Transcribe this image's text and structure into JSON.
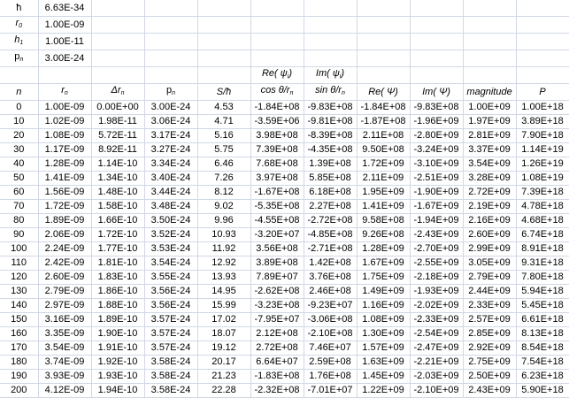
{
  "constants": [
    {
      "symbol": "ħ",
      "sub": "",
      "italic": false,
      "value": "6.63E-34"
    },
    {
      "symbol": "r",
      "sub": "0",
      "italic": true,
      "value": "1.00E-09"
    },
    {
      "symbol": "h",
      "sub": "1",
      "italic": true,
      "value": "1.00E-11"
    },
    {
      "symbol": "p",
      "sub": "n",
      "italic": false,
      "value": "3.00E-24"
    }
  ],
  "super_headers": {
    "col6": {
      "main": "Re( ψ",
      "sub": "i",
      "end": ")"
    },
    "col7": {
      "main": "Im( ψ",
      "sub": "i",
      "end": ")"
    }
  },
  "headers": [
    {
      "main": "n",
      "sub": "",
      "italic": true
    },
    {
      "main": "r",
      "sub": "n",
      "italic": true
    },
    {
      "main": "Δr",
      "sub": "n",
      "italic": true
    },
    {
      "main": "p",
      "sub": "n",
      "italic": false
    },
    {
      "main": "S/ħ",
      "sub": "",
      "italic": true
    },
    {
      "main": "cos θ/r",
      "sub": "n",
      "italic": true
    },
    {
      "main": "sin θ/r",
      "sub": "n",
      "italic": true
    },
    {
      "main": "Re( Ψ)",
      "sub": "",
      "italic": true
    },
    {
      "main": "Im( Ψ)",
      "sub": "",
      "italic": true
    },
    {
      "main": "magnitude",
      "sub": "",
      "italic": true
    },
    {
      "main": "P",
      "sub": "",
      "italic": true
    }
  ],
  "rows": [
    [
      "0",
      "1.00E-09",
      "0.00E+00",
      "3.00E-24",
      "4.53",
      "-1.84E+08",
      "-9.83E+08",
      "-1.84E+08",
      "-9.83E+08",
      "1.00E+09",
      "1.00E+18"
    ],
    [
      "10",
      "1.02E-09",
      "1.98E-11",
      "3.06E-24",
      "4.71",
      "-3.59E+06",
      "-9.81E+08",
      "-1.87E+08",
      "-1.96E+09",
      "1.97E+09",
      "3.89E+18"
    ],
    [
      "20",
      "1.08E-09",
      "5.72E-11",
      "3.17E-24",
      "5.16",
      "3.98E+08",
      "-8.39E+08",
      "2.11E+08",
      "-2.80E+09",
      "2.81E+09",
      "7.90E+18"
    ],
    [
      "30",
      "1.17E-09",
      "8.92E-11",
      "3.27E-24",
      "5.75",
      "7.39E+08",
      "-4.35E+08",
      "9.50E+08",
      "-3.24E+09",
      "3.37E+09",
      "1.14E+19"
    ],
    [
      "40",
      "1.28E-09",
      "1.14E-10",
      "3.34E-24",
      "6.46",
      "7.68E+08",
      "1.39E+08",
      "1.72E+09",
      "-3.10E+09",
      "3.54E+09",
      "1.26E+19"
    ],
    [
      "50",
      "1.41E-09",
      "1.34E-10",
      "3.40E-24",
      "7.26",
      "3.97E+08",
      "5.85E+08",
      "2.11E+09",
      "-2.51E+09",
      "3.28E+09",
      "1.08E+19"
    ],
    [
      "60",
      "1.56E-09",
      "1.48E-10",
      "3.44E-24",
      "8.12",
      "-1.67E+08",
      "6.18E+08",
      "1.95E+09",
      "-1.90E+09",
      "2.72E+09",
      "7.39E+18"
    ],
    [
      "70",
      "1.72E-09",
      "1.58E-10",
      "3.48E-24",
      "9.02",
      "-5.35E+08",
      "2.27E+08",
      "1.41E+09",
      "-1.67E+09",
      "2.19E+09",
      "4.78E+18"
    ],
    [
      "80",
      "1.89E-09",
      "1.66E-10",
      "3.50E-24",
      "9.96",
      "-4.55E+08",
      "-2.72E+08",
      "9.58E+08",
      "-1.94E+09",
      "2.16E+09",
      "4.68E+18"
    ],
    [
      "90",
      "2.06E-09",
      "1.72E-10",
      "3.52E-24",
      "10.93",
      "-3.20E+07",
      "-4.85E+08",
      "9.26E+08",
      "-2.43E+09",
      "2.60E+09",
      "6.74E+18"
    ],
    [
      "100",
      "2.24E-09",
      "1.77E-10",
      "3.53E-24",
      "11.92",
      "3.56E+08",
      "-2.71E+08",
      "1.28E+09",
      "-2.70E+09",
      "2.99E+09",
      "8.91E+18"
    ],
    [
      "110",
      "2.42E-09",
      "1.81E-10",
      "3.54E-24",
      "12.92",
      "3.89E+08",
      "1.42E+08",
      "1.67E+09",
      "-2.55E+09",
      "3.05E+09",
      "9.31E+18"
    ],
    [
      "120",
      "2.60E-09",
      "1.83E-10",
      "3.55E-24",
      "13.93",
      "7.89E+07",
      "3.76E+08",
      "1.75E+09",
      "-2.18E+09",
      "2.79E+09",
      "7.80E+18"
    ],
    [
      "130",
      "2.79E-09",
      "1.86E-10",
      "3.56E-24",
      "14.95",
      "-2.62E+08",
      "2.46E+08",
      "1.49E+09",
      "-1.93E+09",
      "2.44E+09",
      "5.94E+18"
    ],
    [
      "140",
      "2.97E-09",
      "1.88E-10",
      "3.56E-24",
      "15.99",
      "-3.23E+08",
      "-9.23E+07",
      "1.16E+09",
      "-2.02E+09",
      "2.33E+09",
      "5.45E+18"
    ],
    [
      "150",
      "3.16E-09",
      "1.89E-10",
      "3.57E-24",
      "17.02",
      "-7.95E+07",
      "-3.06E+08",
      "1.08E+09",
      "-2.33E+09",
      "2.57E+09",
      "6.61E+18"
    ],
    [
      "160",
      "3.35E-09",
      "1.90E-10",
      "3.57E-24",
      "18.07",
      "2.12E+08",
      "-2.10E+08",
      "1.30E+09",
      "-2.54E+09",
      "2.85E+09",
      "8.13E+18"
    ],
    [
      "170",
      "3.54E-09",
      "1.91E-10",
      "3.57E-24",
      "19.12",
      "2.72E+08",
      "7.46E+07",
      "1.57E+09",
      "-2.47E+09",
      "2.92E+09",
      "8.54E+18"
    ],
    [
      "180",
      "3.74E-09",
      "1.92E-10",
      "3.58E-24",
      "20.17",
      "6.64E+07",
      "2.59E+08",
      "1.63E+09",
      "-2.21E+09",
      "2.75E+09",
      "7.54E+18"
    ],
    [
      "190",
      "3.93E-09",
      "1.93E-10",
      "3.58E-24",
      "21.23",
      "-1.83E+08",
      "1.76E+08",
      "1.45E+09",
      "-2.03E+09",
      "2.50E+09",
      "6.23E+18"
    ],
    [
      "200",
      "4.12E-09",
      "1.94E-10",
      "3.58E-24",
      "22.28",
      "-2.32E+08",
      "-7.01E+07",
      "1.22E+09",
      "-2.10E+09",
      "2.43E+09",
      "5.90E+18"
    ]
  ],
  "colors": {
    "gridline": "#d0d7e5"
  }
}
